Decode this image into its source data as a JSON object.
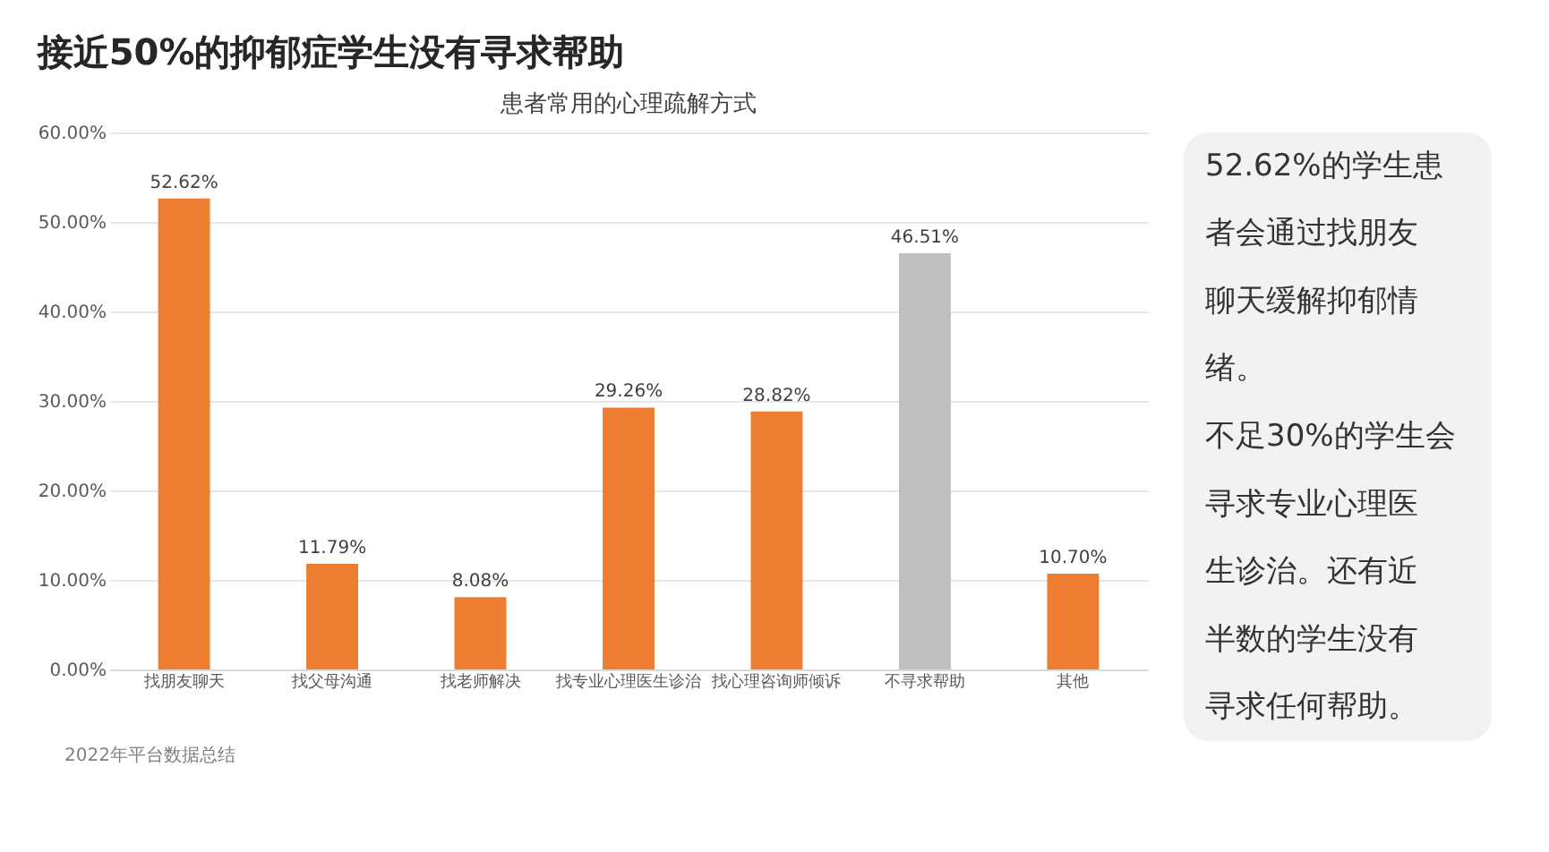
{
  "chart_data": {
    "type": "bar",
    "title": "接近50%的抑郁症学生没有寻求帮助",
    "subtitle": "患者常用的心理疏解方式",
    "categories": [
      "找朋友聊天",
      "找父母沟通",
      "找老师解决",
      "找专业心理医生诊治",
      "找心理咨询师倾诉",
      "不寻求帮助",
      "其他"
    ],
    "values": [
      52.62,
      11.79,
      8.08,
      29.26,
      28.82,
      46.51,
      10.7
    ],
    "colors": [
      "#ed7d31",
      "#ed7d31",
      "#ed7d31",
      "#ed7d31",
      "#ed7d31",
      "#bfbfbf",
      "#ed7d31"
    ],
    "value_labels": [
      "52.62%",
      "11.79%",
      "8.08%",
      "29.26%",
      "28.82%",
      "46.51%",
      "10.70%"
    ],
    "ylim": [
      0,
      60
    ],
    "yticks": [
      {
        "value": 0,
        "label": "0.00%"
      },
      {
        "value": 10,
        "label": "10.00%"
      },
      {
        "value": 20,
        "label": "20.00%"
      },
      {
        "value": 30,
        "label": "30.00%"
      },
      {
        "value": 40,
        "label": "40.00%"
      },
      {
        "value": 50,
        "label": "50.00%"
      },
      {
        "value": 60,
        "label": "60.00%"
      }
    ],
    "grid": "y",
    "annotations": [
      "52.62%的学生患者会通过找朋友聊天缓解抑郁情绪。",
      "不足30%的学生会寻求专业心理医生诊治。还有近半数的学生没有寻求任何帮助。",
      "2022年平台数据总结"
    ]
  }
}
